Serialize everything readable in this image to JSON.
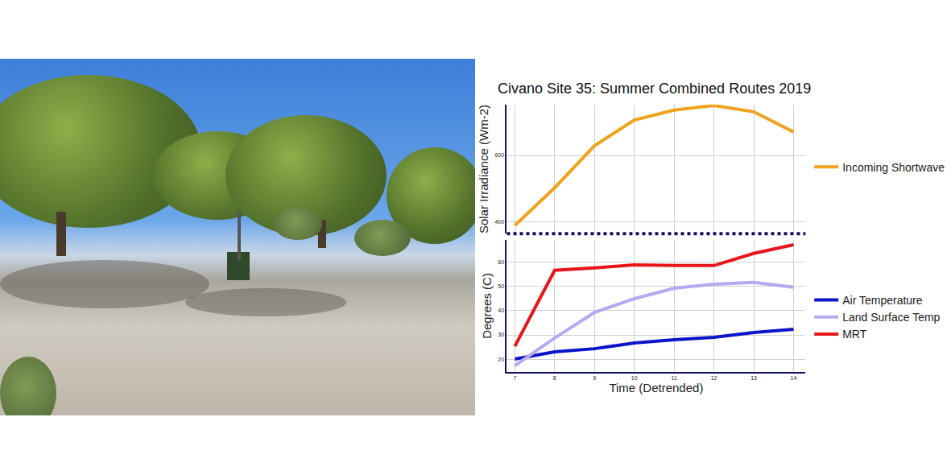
{
  "chart_data": [
    {
      "type": "line",
      "title": "Civano Site 35: Summer Combined Routes 2019",
      "ylabel": "Solar Irradiance (Wm-2)",
      "x": [
        7,
        8,
        9,
        10,
        11,
        12,
        13,
        14
      ],
      "series": [
        {
          "name": "Incoming Shortwave",
          "color": "#f0a31c",
          "values": [
            388,
            502,
            629,
            707,
            737,
            751,
            732,
            671
          ]
        }
      ],
      "xlim": [
        6.8,
        14.3
      ],
      "xticks": [
        7,
        8,
        9,
        10,
        11,
        12,
        13,
        14
      ],
      "ylim": [
        363,
        754
      ],
      "yticks": [
        400,
        600
      ],
      "grid": true,
      "tick_labels": "y"
    },
    {
      "type": "line",
      "ylabel": "Degrees (C)",
      "xlabel": "Time (Detrended)",
      "x": [
        7,
        8,
        9,
        10,
        11,
        12,
        13,
        14
      ],
      "series": [
        {
          "name": "Air Temperature",
          "color": "#0a14c8",
          "values": [
            20,
            23,
            24.3,
            26.7,
            28,
            29,
            31,
            32.3
          ]
        },
        {
          "name": "Land Surface Temp",
          "color": "#b3aaf0",
          "values": [
            17.3,
            28.7,
            39.3,
            45,
            49.3,
            51,
            51.7,
            49.7
          ]
        },
        {
          "name": "MRT",
          "color": "#e8161b",
          "values": [
            25.3,
            56.7,
            57.7,
            59,
            58.7,
            58.7,
            63.7,
            67.3
          ]
        }
      ],
      "xlim": [
        6.8,
        14.3
      ],
      "xticks": [
        7,
        8,
        9,
        10,
        11,
        12,
        13,
        14
      ],
      "ylim": [
        14.7,
        69.3
      ],
      "yticks": [
        20,
        30,
        40,
        50,
        60
      ],
      "grid": true
    }
  ]
}
